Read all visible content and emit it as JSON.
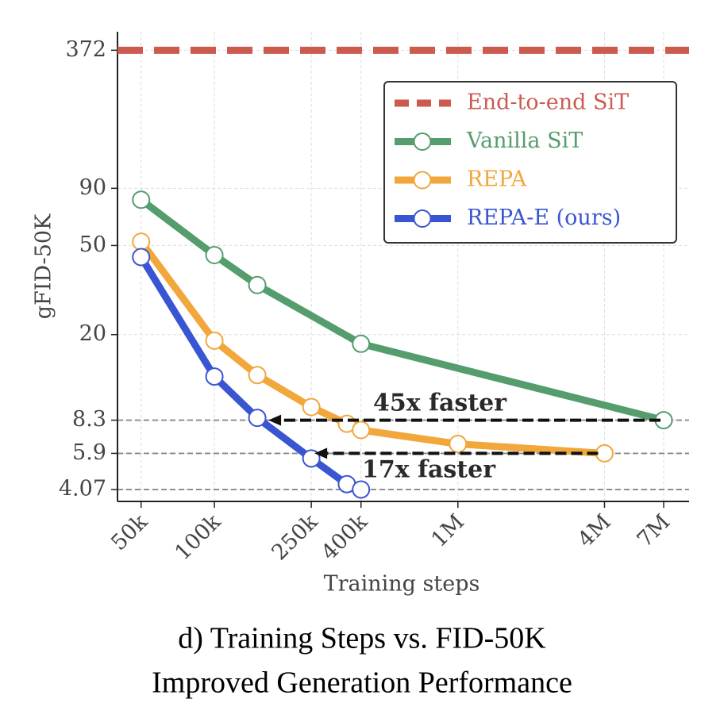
{
  "chart_data": {
    "type": "line",
    "caption": [
      "d) Training Steps vs. FID-50K",
      "Improved Generation Performance"
    ],
    "xlabel": "Training steps",
    "ylabel": "gFID-50K",
    "xscale": "log",
    "yscale": "log",
    "xlim": [
      40000,
      8900000
    ],
    "ylim": [
      3.6,
      450
    ],
    "xticks": [
      {
        "value": 50000,
        "label": "50k"
      },
      {
        "value": 100000,
        "label": "100k"
      },
      {
        "value": 250000,
        "label": "250k"
      },
      {
        "value": 400000,
        "label": "400k"
      },
      {
        "value": 1000000,
        "label": "1M"
      },
      {
        "value": 4000000,
        "label": "4M"
      },
      {
        "value": 7000000,
        "label": "7M"
      }
    ],
    "yticks": [
      372,
      90,
      50,
      20,
      8.3,
      5.9,
      4.07
    ],
    "grid": true,
    "reference_lines": [
      8.3,
      5.9,
      4.07
    ],
    "legend": "upper right",
    "series": [
      {
        "name": "End-to-end SiT",
        "color": "#cc5a4f",
        "linestyle": "dashed",
        "marker": "none",
        "values": [
          372
        ]
      },
      {
        "name": "Vanilla SiT",
        "color": "#559d6c",
        "linestyle": "solid",
        "marker": "o",
        "x": [
          50000,
          100000,
          150000,
          400000,
          7000000
        ],
        "values": [
          80,
          45.3,
          33.3,
          18.2,
          8.3
        ]
      },
      {
        "name": "REPA",
        "color": "#f1a73b",
        "linestyle": "solid",
        "marker": "o",
        "x": [
          50000,
          100000,
          150000,
          250000,
          350000,
          400000,
          1000000,
          4000000
        ],
        "values": [
          52,
          18.8,
          13.2,
          9.5,
          8.0,
          7.5,
          6.5,
          5.9
        ]
      },
      {
        "name": "REPA-E (ours)",
        "color": "#3a55d1",
        "linestyle": "solid",
        "marker": "o",
        "x": [
          50000,
          100000,
          150000,
          250000,
          350000,
          400000
        ],
        "values": [
          44.4,
          13.0,
          8.5,
          5.6,
          4.3,
          4.07
        ]
      }
    ],
    "annotations": [
      "45x faster",
      "17x faster"
    ]
  }
}
